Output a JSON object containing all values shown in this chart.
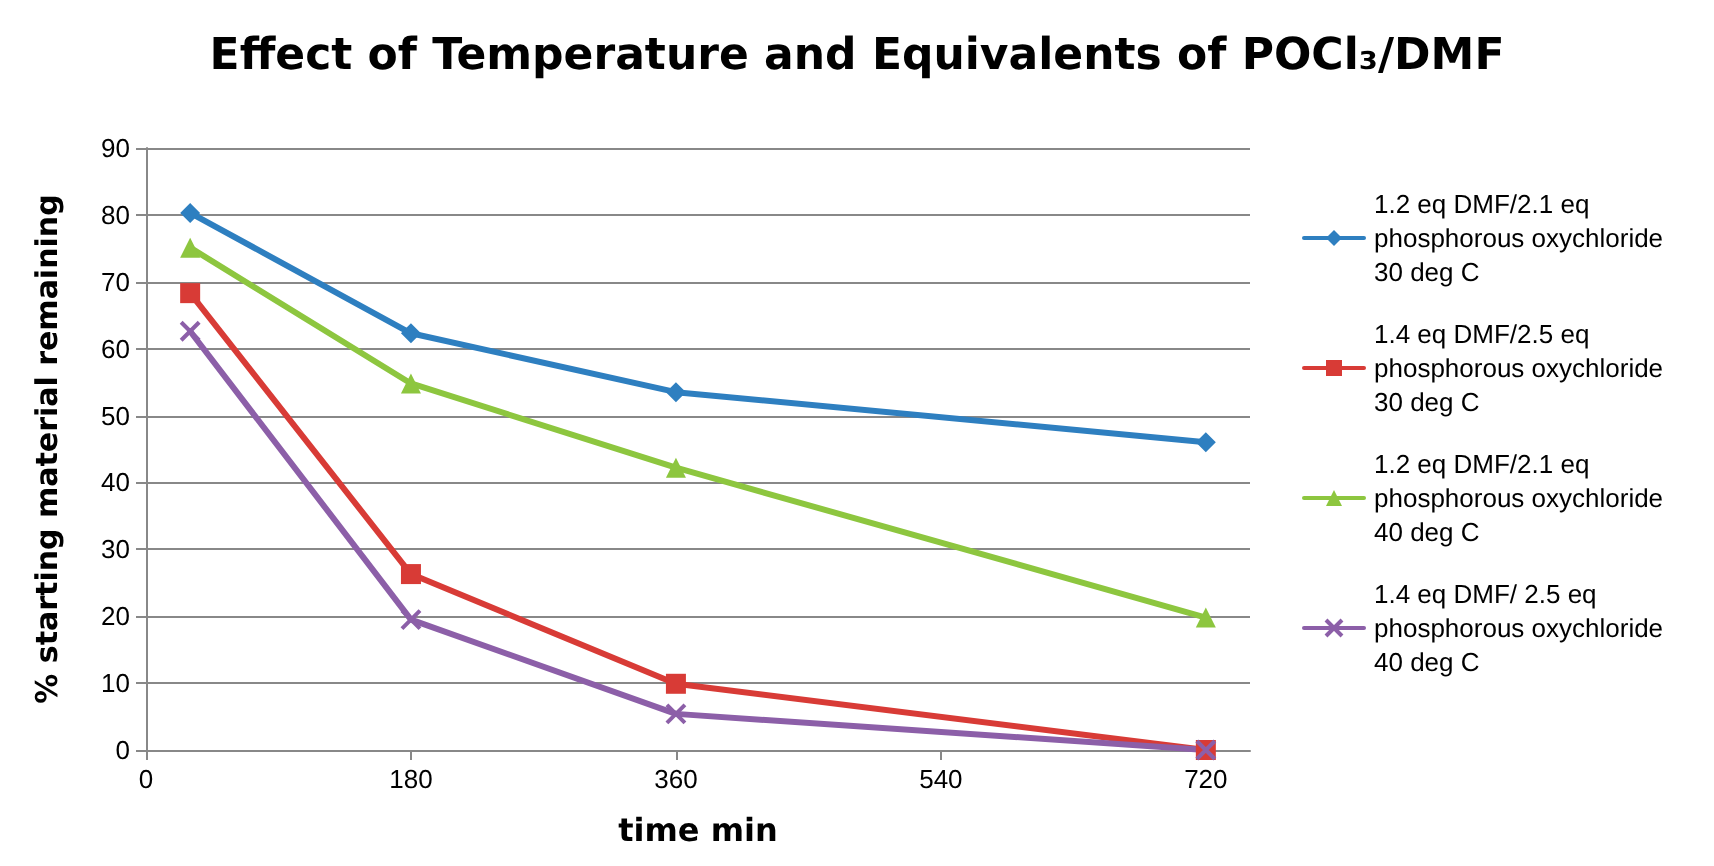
{
  "chart_data": {
    "type": "line",
    "title": "Effect of Temperature and Equivalents of POCl₃/DMF",
    "xlabel": "time min",
    "ylabel": "% starting material remaining",
    "x": [
      30,
      180,
      360,
      720
    ],
    "xlim": [
      0,
      750
    ],
    "xticks": [
      0,
      180,
      360,
      540,
      720
    ],
    "ylim": [
      0,
      90
    ],
    "yticks": [
      0,
      10,
      20,
      30,
      40,
      50,
      60,
      70,
      80,
      90
    ],
    "grid": "y",
    "legend": "right",
    "series": [
      {
        "name": "1.2 eq DMF/2.1 eq phosphorous oxychloride 30 deg C",
        "color": "#2e7fc0",
        "marker": "diamond",
        "values": [
          80.3,
          62.3,
          53.5,
          46
        ]
      },
      {
        "name": "1.4 eq DMF/2.5 eq phosphorous oxychloride 30 deg C",
        "color": "#d83b36",
        "marker": "square",
        "values": [
          68.3,
          26.3,
          9.9,
          0
        ]
      },
      {
        "name": "1.2 eq DMF/2.1 eq phosphorous oxychloride 40 deg C",
        "color": "#8dc63f",
        "marker": "triangle",
        "values": [
          75.1,
          54.8,
          42.2,
          19.8
        ]
      },
      {
        "name": "1.4 eq DMF/ 2.5 eq phosphorous oxychloride 40 deg C",
        "color": "#8c5fa8",
        "marker": "cross",
        "values": [
          62.6,
          19.5,
          5.4,
          0
        ]
      }
    ]
  }
}
